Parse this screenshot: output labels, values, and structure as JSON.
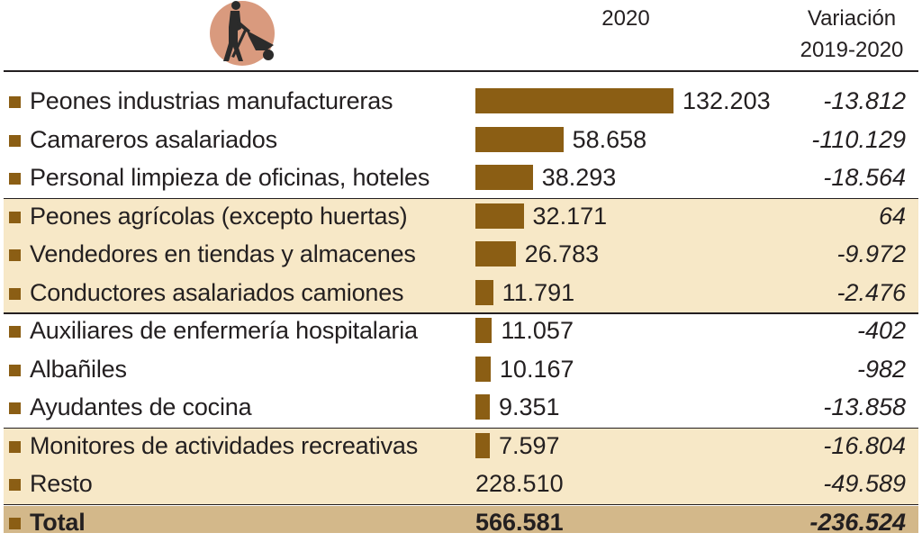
{
  "colors": {
    "bar": "#8b5e14",
    "band": "#f7e8c7",
    "total_band": "#d3b88a",
    "logo_circle": "#d99a7e",
    "logo_figure": "#2b2b2b"
  },
  "header": {
    "logo_icon": "worker-with-wheelbarrow-icon",
    "year_label": "2020",
    "variation_label_line1": "Variación",
    "variation_label_line2": "2019-2020"
  },
  "chart_data": {
    "type": "bar",
    "orientation": "horizontal",
    "categories": [
      "Peones industrias manufactureras",
      "Camareros asalariados",
      "Personal limpieza de oficinas, hoteles",
      "Peones agrícolas (excepto huertas)",
      "Vendedores en tiendas y almacenes",
      "Conductores asalariados camiones",
      "Auxiliares de enfermería hospitalaria",
      "Albañiles",
      "Ayudantes de cocina",
      "Monitores de actividades recreativas",
      "Resto",
      "Total"
    ],
    "values": [
      132203,
      58658,
      38293,
      32171,
      26783,
      11791,
      11057,
      10167,
      9351,
      7597,
      228510,
      566581
    ],
    "value_labels": [
      "132.203",
      "58.658",
      "38.293",
      "32.171",
      "26.783",
      "11.791",
      "11.057",
      "10.167",
      "9.351",
      "7.597",
      "228.510",
      "566.581"
    ],
    "variation": [
      -13812,
      -110129,
      -18564,
      64,
      -9972,
      -2476,
      -402,
      -982,
      -13858,
      -16804,
      -49589,
      -236524
    ],
    "variation_labels": [
      "-13.812",
      "-110.129",
      "-18.564",
      "64",
      "-9.972",
      "-2.476",
      "-402",
      "-982",
      "-13.858",
      "-16.804",
      "-49.589",
      "-236.524"
    ],
    "bar_drawn": [
      true,
      true,
      true,
      true,
      true,
      true,
      true,
      true,
      true,
      true,
      false,
      false
    ],
    "bands": [
      false,
      false,
      false,
      true,
      true,
      true,
      false,
      false,
      false,
      true,
      true,
      false
    ],
    "separators_after": [
      2,
      5,
      8,
      10
    ],
    "xlim": [
      0,
      132203
    ],
    "grid": false,
    "legend": "none"
  }
}
